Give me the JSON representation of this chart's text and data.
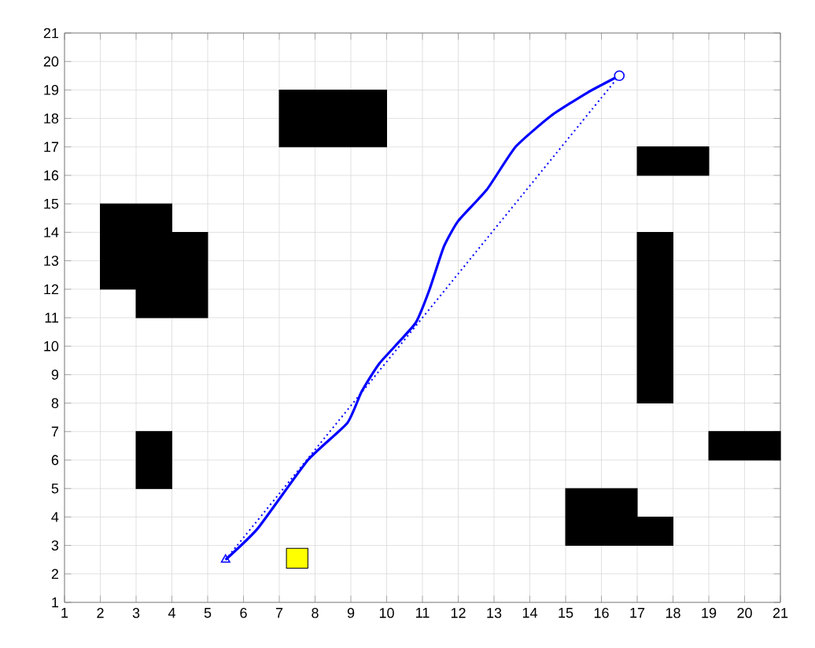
{
  "chart_data": {
    "type": "line",
    "xlim": [
      1,
      21
    ],
    "ylim": [
      1,
      21
    ],
    "xticks": [
      1,
      2,
      3,
      4,
      5,
      6,
      7,
      8,
      9,
      10,
      11,
      12,
      13,
      14,
      15,
      16,
      17,
      18,
      19,
      20,
      21
    ],
    "yticks": [
      1,
      2,
      3,
      4,
      5,
      6,
      7,
      8,
      9,
      10,
      11,
      12,
      13,
      14,
      15,
      16,
      17,
      18,
      19,
      20,
      21
    ],
    "grid": true,
    "series": [
      {
        "type": "area",
        "color": "#000000",
        "x": [
          3,
          4,
          4,
          3
        ],
        "values": [
          5,
          5,
          7,
          7
        ]
      },
      {
        "type": "area",
        "color": "#000000",
        "x": [
          2,
          3,
          3,
          5,
          5,
          4,
          4,
          2
        ],
        "values": [
          12,
          12,
          11,
          11,
          14,
          14,
          15,
          15
        ]
      },
      {
        "type": "area",
        "color": "#000000",
        "x": [
          7,
          10,
          10,
          7
        ],
        "values": [
          17,
          17,
          19,
          19
        ]
      },
      {
        "type": "area",
        "color": "#000000",
        "x": [
          19,
          21,
          21,
          19
        ],
        "values": [
          6,
          6,
          7,
          7
        ]
      },
      {
        "type": "area",
        "color": "#000000",
        "x": [
          17,
          18,
          18,
          17
        ],
        "values": [
          8,
          8,
          14,
          14
        ]
      },
      {
        "type": "area",
        "color": "#000000",
        "x": [
          17,
          19,
          19,
          17
        ],
        "values": [
          16,
          16,
          17,
          17
        ]
      },
      {
        "type": "area",
        "color": "#000000",
        "x": [
          15,
          18,
          18,
          17,
          17,
          15
        ],
        "values": [
          3,
          3,
          4,
          4,
          5,
          5
        ]
      },
      {
        "type": "area",
        "color": "#ffff00",
        "x": [
          7.2,
          7.8,
          7.8,
          7.2
        ],
        "values": [
          2.2,
          2.2,
          2.9,
          2.9
        ]
      },
      {
        "color": "#0000ff",
        "line_style": "dotted",
        "marker": "none",
        "x": [
          5.5,
          16.5
        ],
        "values": [
          2.5,
          19.5
        ]
      },
      {
        "color": "#0000ff",
        "line_style": "solid",
        "marker": "none",
        "x": [
          5.5,
          6.4,
          7.8,
          8.9,
          9.3,
          9.8,
          10.8,
          11.2,
          11.6,
          12.0,
          12.8,
          13.6,
          14.6,
          15.6,
          16.5
        ],
        "values": [
          2.5,
          3.6,
          6.0,
          7.3,
          8.4,
          9.4,
          10.8,
          12.0,
          13.5,
          14.4,
          15.5,
          17.0,
          18.1,
          18.9,
          19.5
        ]
      },
      {
        "type": "scatter",
        "color": "#0000ff",
        "marker": "triangle",
        "x": [
          5.5
        ],
        "values": [
          2.5
        ]
      },
      {
        "type": "scatter",
        "color": "#0000ff",
        "marker": "circle",
        "x": [
          16.5
        ],
        "values": [
          19.5
        ]
      }
    ]
  }
}
